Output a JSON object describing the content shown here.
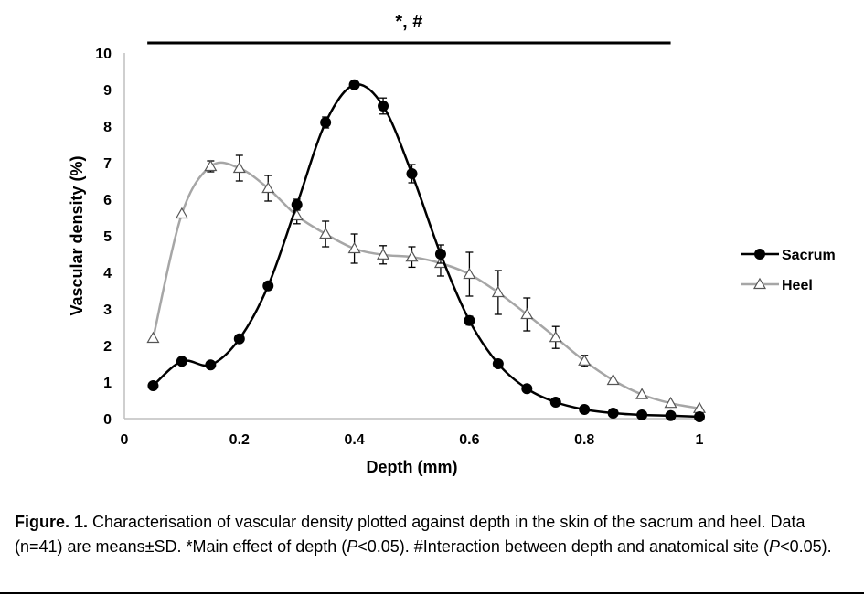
{
  "chart_data": {
    "type": "line",
    "title": "",
    "xlabel": "Depth (mm)",
    "ylabel": "Vascular density (%)",
    "xlim": [
      0,
      1
    ],
    "ylim": [
      0,
      10
    ],
    "x_ticks": [
      "0",
      "0.2",
      "0.4",
      "0.6",
      "0.8",
      "1"
    ],
    "y_ticks": [
      "0",
      "1",
      "2",
      "3",
      "4",
      "5",
      "6",
      "7",
      "8",
      "9",
      "10"
    ],
    "x_tick_values": [
      0,
      0.2,
      0.4,
      0.6,
      0.8,
      1
    ],
    "y_tick_values": [
      0,
      1,
      2,
      3,
      4,
      5,
      6,
      7,
      8,
      9,
      10
    ],
    "grid": false,
    "legend_position": "right",
    "significance_bar": {
      "label": "*, #",
      "x_start": 0.04,
      "x_end": 0.95
    },
    "series": [
      {
        "name": "Sacrum",
        "color": "#000000",
        "marker": "filled-circle",
        "x": [
          0.05,
          0.1,
          0.15,
          0.2,
          0.25,
          0.3,
          0.35,
          0.4,
          0.45,
          0.5,
          0.55,
          0.6,
          0.65,
          0.7,
          0.75,
          0.8,
          0.85,
          0.9,
          0.95,
          1.0
        ],
        "y": [
          0.9,
          1.57,
          1.47,
          2.18,
          3.63,
          5.85,
          8.1,
          9.13,
          8.55,
          6.7,
          4.5,
          2.68,
          1.5,
          0.82,
          0.45,
          0.25,
          0.15,
          0.1,
          0.08,
          0.05
        ],
        "sd": [
          0.03,
          0.05,
          0.05,
          0.06,
          0.08,
          0.15,
          0.15,
          0.1,
          0.22,
          0.25,
          0.25,
          0.12,
          0.05,
          0.04,
          0.03,
          0.02,
          0.01,
          0.01,
          0.01,
          0.01
        ]
      },
      {
        "name": "Heel",
        "color": "#a6a6a6",
        "marker": "open-triangle",
        "x": [
          0.05,
          0.1,
          0.15,
          0.2,
          0.25,
          0.3,
          0.35,
          0.4,
          0.45,
          0.5,
          0.55,
          0.6,
          0.65,
          0.7,
          0.75,
          0.8,
          0.85,
          0.9,
          0.95,
          1.0
        ],
        "y": [
          2.2,
          5.6,
          6.9,
          6.85,
          6.3,
          5.55,
          5.05,
          4.65,
          4.48,
          4.42,
          4.25,
          3.95,
          3.45,
          2.85,
          2.22,
          1.58,
          1.05,
          0.66,
          0.42,
          0.28
        ],
        "sd": [
          0.05,
          0.1,
          0.15,
          0.35,
          0.35,
          0.22,
          0.35,
          0.4,
          0.25,
          0.28,
          0.35,
          0.6,
          0.6,
          0.45,
          0.3,
          0.15,
          0.05,
          0.05,
          0.05,
          0.05
        ]
      }
    ]
  },
  "caption": {
    "label": "Figure. 1.",
    "part1": " Characterisation of vascular density plotted against depth in the skin of the sacrum and heel. Data (n=41) are means±SD. *Main effect of depth (",
    "p1": "P",
    "part2": "<0.05). #Interaction between depth and anatomical site (",
    "p2": "P",
    "part3": "<0.05)."
  }
}
